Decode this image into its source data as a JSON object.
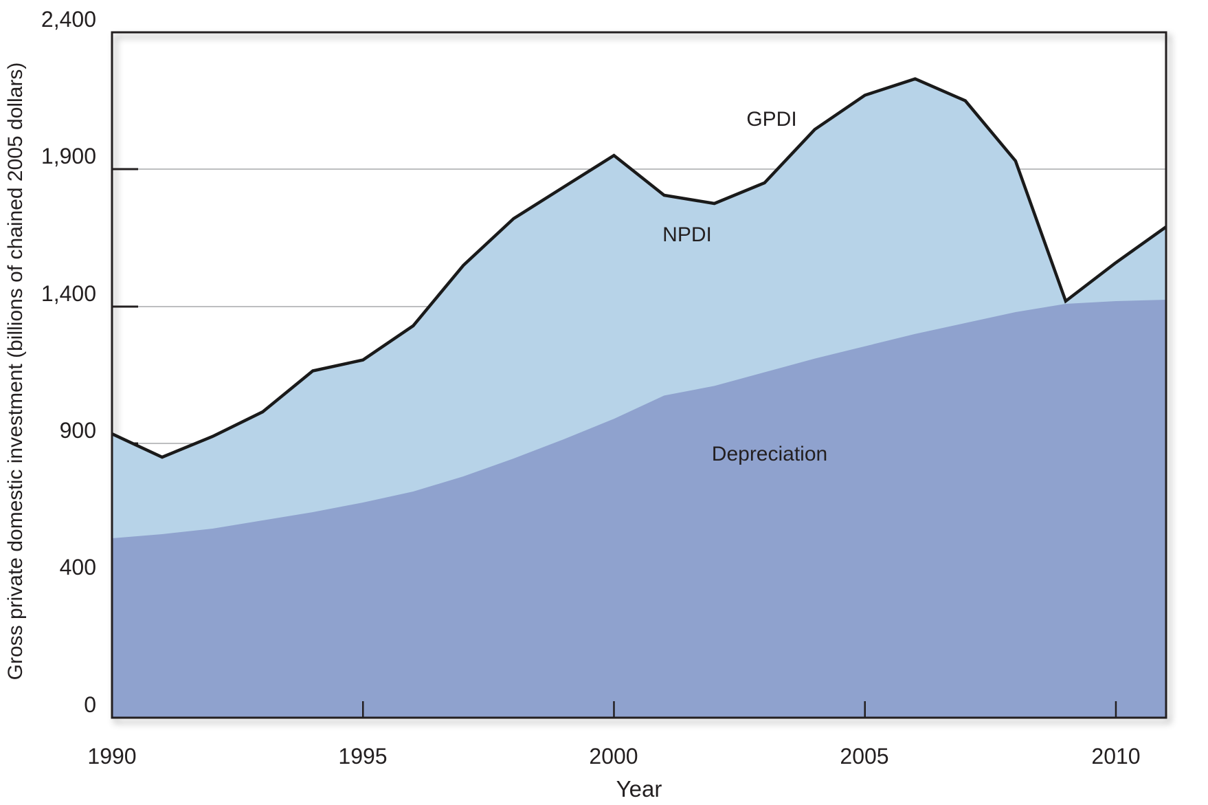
{
  "figure": {
    "y_axis": {
      "title": "Gross private domestic investment (billions of chained 2005 dollars)",
      "tick_labels": [
        "2,400",
        "1,900",
        "1,400",
        "900",
        "400",
        "0"
      ]
    },
    "x_axis": {
      "title": "Year",
      "tick_labels": [
        "1990",
        "1995",
        "2000",
        "2005",
        "2010"
      ]
    },
    "series_labels": {
      "gpdi": "GPDI",
      "npdi": "NPDI",
      "depreciation": "Depreciation"
    }
  },
  "chart_data": {
    "type": "area",
    "title": "",
    "xlabel": "Year",
    "ylabel": "Gross private domestic investment (billions of chained 2005 dollars)",
    "x": [
      1990,
      1991,
      1992,
      1993,
      1994,
      1995,
      1996,
      1997,
      1998,
      1999,
      2000,
      2001,
      2002,
      2003,
      2004,
      2005,
      2006,
      2007,
      2008,
      2009,
      2010,
      2011
    ],
    "series": [
      {
        "name": "GPDI",
        "role": "total: black line, light-blue area below it",
        "values": [
          935,
          850,
          925,
          1015,
          1165,
          1205,
          1330,
          1550,
          1720,
          1835,
          1950,
          1805,
          1775,
          1850,
          2045,
          2170,
          2230,
          2150,
          1930,
          1420,
          1560,
          1690
        ]
      },
      {
        "name": "Depreciation",
        "role": "dark periwinkle area from 0 up to this boundary",
        "values": [
          555,
          570,
          590,
          620,
          650,
          685,
          725,
          780,
          845,
          915,
          990,
          1075,
          1110,
          1160,
          1210,
          1255,
          1300,
          1340,
          1380,
          1410,
          1420,
          1425
        ]
      },
      {
        "name": "NPDI",
        "role": "implied band = GPDI minus Depreciation (light-blue region)",
        "values": [
          380,
          280,
          335,
          395,
          515,
          520,
          605,
          770,
          875,
          920,
          960,
          730,
          665,
          690,
          835,
          915,
          930,
          810,
          550,
          10,
          140,
          265
        ]
      }
    ],
    "xlim": [
      1990,
      2011
    ],
    "ylim": [
      0,
      2400
    ],
    "y_ticks": [
      0,
      400,
      900,
      1400,
      1900,
      2400
    ],
    "y_tick_spacing_note": "ticks are equally spaced visually despite unequal numeric steps",
    "x_ticks": [
      1990,
      1995,
      2000,
      2005,
      2010
    ],
    "gridlines": [
      400,
      900,
      1400,
      1900
    ],
    "grid": true,
    "legend_position": "labels annotated inside plot",
    "annotations": [
      "GPDI",
      "NPDI",
      "Depreciation"
    ],
    "colors": {
      "gpdi_fill": "#b7d3e8",
      "depreciation_fill": "#8fa2ce",
      "line": "#1a1a1a",
      "gridline": "#a7a9ac",
      "frame": "#231f20",
      "text": "#231f20"
    }
  }
}
